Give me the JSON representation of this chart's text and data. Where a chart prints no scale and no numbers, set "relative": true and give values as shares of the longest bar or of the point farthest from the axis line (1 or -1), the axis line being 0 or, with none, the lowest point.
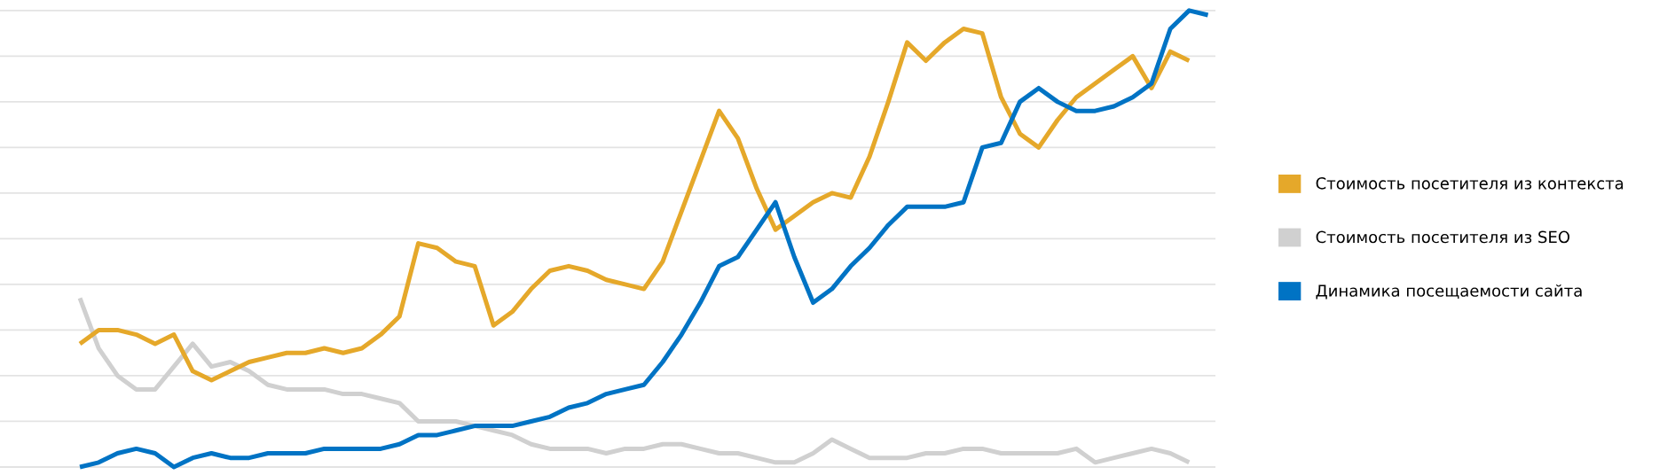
{
  "chart_data": {
    "type": "line",
    "relative": true,
    "grid": "y",
    "legend": "right",
    "categories": [
      null,
      null,
      null,
      null,
      null,
      null,
      null,
      null,
      null,
      null,
      null,
      null,
      null,
      null,
      null,
      null,
      null,
      null,
      null,
      null,
      null,
      null,
      null,
      null,
      null,
      null,
      null,
      null,
      null,
      null,
      null,
      null,
      null,
      null,
      null,
      null,
      null,
      null,
      null,
      null,
      null,
      null,
      null,
      null,
      null,
      null,
      null,
      null,
      null,
      null,
      null,
      null,
      null,
      null,
      null,
      null,
      null,
      null,
      null,
      null,
      null
    ],
    "series": [
      {
        "name": "Стоимость посетителя из контекста",
        "color": "#e5a82a",
        "values": [
          0.27,
          0.3,
          0.3,
          0.29,
          0.27,
          0.29,
          0.21,
          0.19,
          0.21,
          0.23,
          0.24,
          0.25,
          0.25,
          0.26,
          0.25,
          0.26,
          0.29,
          0.33,
          0.49,
          0.48,
          0.45,
          0.44,
          0.31,
          0.34,
          0.39,
          0.43,
          0.44,
          0.43,
          0.41,
          0.4,
          0.39,
          0.45,
          0.56,
          0.67,
          0.78,
          0.72,
          0.61,
          0.52,
          0.55,
          0.58,
          0.6,
          0.59,
          0.68,
          0.8,
          0.93,
          0.89,
          0.93,
          0.96,
          0.95,
          0.81,
          0.73,
          0.7,
          0.76,
          0.81,
          0.84,
          0.87,
          0.9,
          0.83,
          0.91,
          0.89,
          null
        ]
      },
      {
        "name": "Стоимость посетителя из SEO",
        "color": "#d0d0d0",
        "values": [
          0.37,
          0.26,
          0.2,
          0.17,
          0.17,
          0.22,
          0.27,
          0.22,
          0.23,
          0.21,
          0.18,
          0.17,
          0.17,
          0.17,
          0.16,
          0.16,
          0.15,
          0.14,
          0.1,
          0.1,
          0.1,
          0.09,
          0.08,
          0.07,
          0.05,
          0.04,
          0.04,
          0.04,
          0.03,
          0.04,
          0.04,
          0.05,
          0.05,
          0.04,
          0.03,
          0.03,
          0.02,
          0.01,
          0.01,
          0.03,
          0.06,
          0.04,
          0.02,
          0.02,
          0.02,
          0.03,
          0.03,
          0.04,
          0.04,
          0.03,
          0.03,
          0.03,
          0.03,
          0.04,
          0.01,
          0.02,
          0.03,
          0.04,
          0.03,
          0.01,
          null
        ]
      },
      {
        "name": "Динамика посещаемости сайта",
        "color": "#0073c4",
        "values": [
          0.0,
          0.01,
          0.03,
          0.04,
          0.03,
          0.0,
          0.02,
          0.03,
          0.02,
          0.02,
          0.03,
          0.03,
          0.03,
          0.04,
          0.04,
          0.04,
          0.04,
          0.05,
          0.07,
          0.07,
          0.08,
          0.09,
          0.09,
          0.09,
          0.1,
          0.11,
          0.13,
          0.14,
          0.16,
          0.17,
          0.18,
          0.23,
          0.29,
          0.36,
          0.44,
          0.46,
          0.52,
          0.58,
          0.46,
          0.36,
          0.39,
          0.44,
          0.48,
          0.53,
          0.57,
          0.57,
          0.57,
          0.58,
          0.7,
          0.71,
          0.8,
          0.83,
          0.8,
          0.78,
          0.78,
          0.79,
          0.81,
          0.84,
          0.96,
          1.0,
          0.99
        ]
      }
    ]
  }
}
